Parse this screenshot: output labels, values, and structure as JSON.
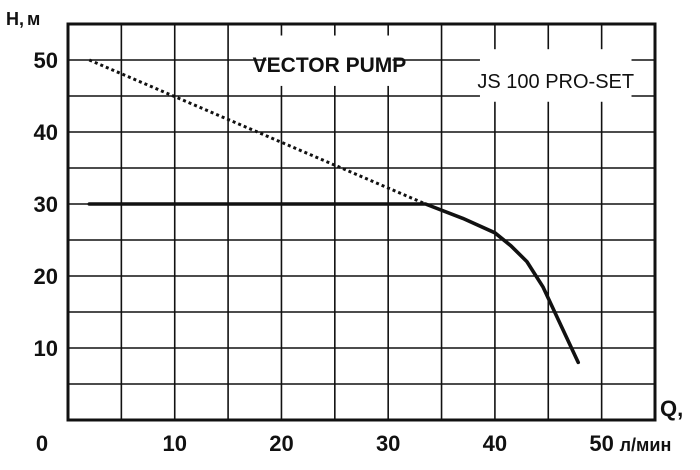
{
  "chart_data": {
    "type": "line",
    "title": "",
    "ylabel_prefix": "H,",
    "ylabel_unit": "м",
    "xlabel_prefix": "Q,",
    "xlabel_unit": "л/мин",
    "origin_label": "0",
    "xlim": [
      0,
      55
    ],
    "ylim": [
      0,
      55
    ],
    "x_ticks": [
      "10",
      "20",
      "30",
      "40",
      "50"
    ],
    "x_tick_values": [
      10,
      20,
      30,
      40,
      50
    ],
    "y_ticks": [
      "10",
      "20",
      "30",
      "40",
      "50"
    ],
    "y_tick_values": [
      10,
      20,
      30,
      40,
      50
    ],
    "grid": true,
    "grid_step_x": 5,
    "grid_step_y": 5,
    "annotations": {
      "brand": "VECTOR PUMP",
      "model": "JS 100 PRO-SET"
    },
    "series": [
      {
        "style": "solid",
        "x": [
          2,
          33.5,
          37,
          40,
          41.5,
          43,
          44.5,
          47.8
        ],
        "y": [
          30,
          30,
          28,
          26,
          24.2,
          22,
          18.5,
          8
        ]
      },
      {
        "style": "dotted",
        "x": [
          2,
          33.5
        ],
        "y": [
          50,
          30
        ]
      }
    ]
  },
  "colors": {
    "line": "#111111",
    "grid": "#111111",
    "background": "#ffffff"
  }
}
